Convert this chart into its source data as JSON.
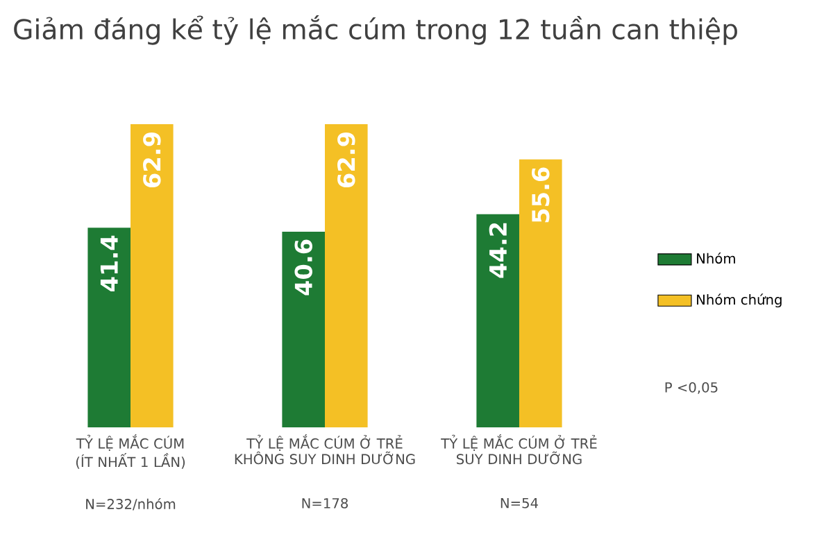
{
  "chart_data": {
    "type": "bar",
    "title": "Giảm đáng kể tỷ lệ mắc cúm trong 12 tuần can thiệp",
    "categories": [
      "TỶ LỆ MẮC CÚM (ÍT NHẤT 1 LẦN)",
      "TỶ LỆ MẮC CÚM Ở TRẺ KHÔNG SUY DINH DƯỠNG",
      "TỶ LỆ MẮC CÚM Ở TRẺ SUY DINH DƯỠNG"
    ],
    "series": [
      {
        "name": "Nhóm",
        "color": "#1e7b34",
        "values": [
          41.4,
          40.6,
          44.2
        ]
      },
      {
        "name": "Nhóm chứng",
        "color": "#f4c025",
        "values": [
          62.9,
          62.9,
          55.6
        ]
      }
    ],
    "data_labels": true,
    "legend": "right",
    "annotations": [
      "N=232/nhóm",
      "N=178",
      "N=54",
      "P <0,05"
    ]
  }
}
